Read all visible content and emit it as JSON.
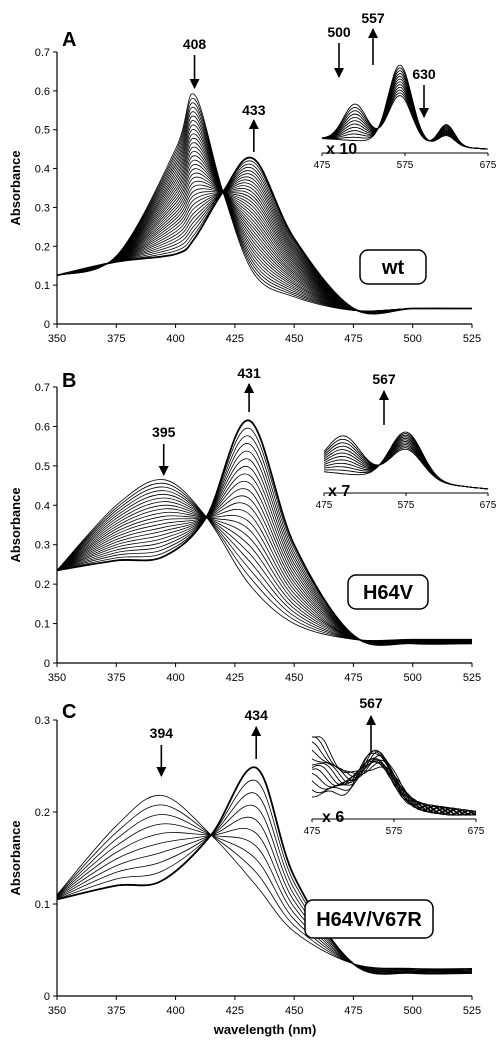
{
  "figure": {
    "xlabel": "wavelength (nm)"
  },
  "chart_data": [
    {
      "panel": "A",
      "type": "line",
      "label": "wt",
      "ylabel": "Absorbance",
      "xlim": [
        350,
        525
      ],
      "ylim": [
        0,
        0.7
      ],
      "xticks": [
        350,
        375,
        400,
        425,
        450,
        475,
        500,
        525
      ],
      "yticks": [
        0,
        0.1,
        0.2,
        0.3,
        0.4,
        0.5,
        0.6,
        0.7
      ],
      "x": [
        350,
        375,
        400,
        408,
        420,
        433,
        450,
        475,
        500,
        525
      ],
      "series": [
        {
          "values": [
            0.125,
            0.175,
            0.45,
            0.59,
            0.34,
            0.13,
            0.07,
            0.035,
            0.04,
            0.04
          ]
        },
        {
          "values": [
            0.125,
            0.16,
            0.18,
            0.22,
            0.34,
            0.425,
            0.22,
            0.04,
            0.04,
            0.04
          ]
        }
      ],
      "isosbestic_point": [
        419,
        0.34
      ],
      "annotations": [
        {
          "text": "408",
          "x": 408,
          "direction": "down"
        },
        {
          "text": "433",
          "x": 433,
          "direction": "up"
        }
      ],
      "inset": {
        "multiplier": "x 10",
        "xlim": [
          475,
          675
        ],
        "xticks": [
          475,
          575,
          675
        ],
        "annotations": [
          {
            "text": "500",
            "direction": "down"
          },
          {
            "text": "557",
            "direction": "up"
          },
          {
            "text": "630",
            "direction": "down"
          }
        ]
      }
    },
    {
      "panel": "B",
      "type": "line",
      "label": "H64V",
      "ylabel": "Absorbance",
      "xlim": [
        350,
        525
      ],
      "ylim": [
        0,
        0.7
      ],
      "xticks": [
        350,
        375,
        400,
        425,
        450,
        475,
        500,
        525
      ],
      "yticks": [
        0,
        0.1,
        0.2,
        0.3,
        0.4,
        0.5,
        0.6,
        0.7
      ],
      "x": [
        350,
        375,
        395,
        413,
        431,
        450,
        475,
        500,
        525
      ],
      "series": [
        {
          "values": [
            0.235,
            0.4,
            0.465,
            0.37,
            0.2,
            0.1,
            0.06,
            0.06,
            0.06
          ]
        },
        {
          "values": [
            0.235,
            0.26,
            0.27,
            0.37,
            0.615,
            0.3,
            0.07,
            0.05,
            0.05
          ]
        }
      ],
      "isosbestic_point": [
        413,
        0.37
      ],
      "annotations": [
        {
          "text": "395",
          "x": 395,
          "direction": "down"
        },
        {
          "text": "431",
          "x": 431,
          "direction": "up"
        }
      ],
      "inset": {
        "multiplier": "x 7",
        "xlim": [
          475,
          675
        ],
        "xticks": [
          475,
          575,
          675
        ],
        "annotations": [
          {
            "text": "567",
            "direction": "up"
          }
        ]
      }
    },
    {
      "panel": "C",
      "type": "line",
      "label": "H64V/V67R",
      "ylabel": "Absorbance",
      "xlim": [
        350,
        525
      ],
      "ylim": [
        0,
        0.3
      ],
      "xticks": [
        350,
        375,
        400,
        425,
        450,
        475,
        500,
        525
      ],
      "yticks": [
        0,
        0.1,
        0.2,
        0.3
      ],
      "x": [
        350,
        375,
        394,
        415,
        434,
        450,
        475,
        500,
        525
      ],
      "series": [
        {
          "values": [
            0.11,
            0.185,
            0.218,
            0.175,
            0.12,
            0.07,
            0.035,
            0.03,
            0.03
          ]
        },
        {
          "values": [
            0.105,
            0.12,
            0.125,
            0.175,
            0.248,
            0.13,
            0.035,
            0.025,
            0.025
          ]
        }
      ],
      "isosbestic_point": [
        415,
        0.175
      ],
      "annotations": [
        {
          "text": "394",
          "x": 394,
          "direction": "down"
        },
        {
          "text": "434",
          "x": 434,
          "direction": "up"
        }
      ],
      "inset": {
        "multiplier": "x 6",
        "xlim": [
          475,
          675
        ],
        "xticks": [
          475,
          575,
          675
        ],
        "annotations": [
          {
            "text": "567",
            "direction": "up"
          }
        ]
      }
    }
  ]
}
